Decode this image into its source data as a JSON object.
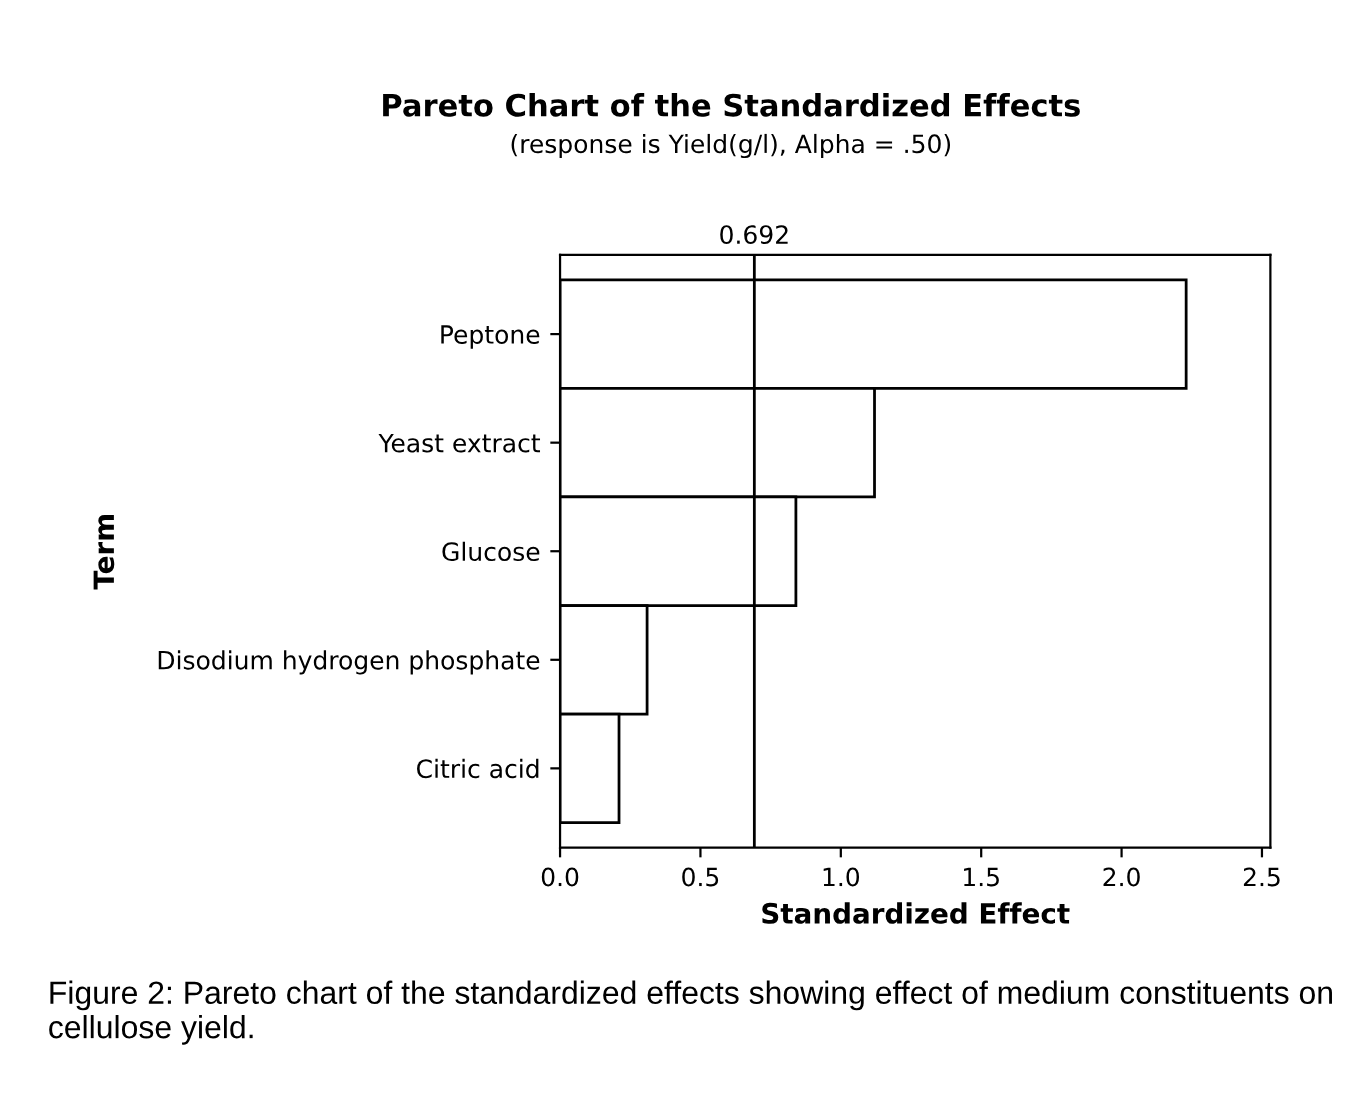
{
  "chart_data": {
    "type": "bar",
    "orientation": "horizontal",
    "title": "Pareto Chart of the Standardized Effects",
    "subtitle": "(response is Yield(g/l), Alpha = .50)",
    "xlabel": "Standardized Effect",
    "ylabel": "Term",
    "categories": [
      "Peptone",
      "Yeast extract",
      "Glucose",
      "Disodium hydrogen phosphate",
      "Citric acid"
    ],
    "values": [
      2.23,
      1.12,
      0.84,
      0.31,
      0.21
    ],
    "color": "#ffffff",
    "xlim": [
      0,
      2.53
    ],
    "xticks": [
      {
        "value": 0,
        "label": "0.0"
      },
      {
        "value": 0.5,
        "label": "0.5"
      },
      {
        "value": 1,
        "label": "1.0"
      },
      {
        "value": 1.5,
        "label": "1.5"
      },
      {
        "value": 2,
        "label": "2.0"
      },
      {
        "value": 2.5,
        "label": "2.5"
      }
    ],
    "ref_lines": [
      {
        "axis": "x",
        "value": 0.692,
        "label": "0.692",
        "color": "#000000"
      }
    ],
    "grid": false,
    "legend": false,
    "annotations": [
      "Figure 2: Pareto chart of the standardized effects showing effect of medium constituents on cellulose yield."
    ]
  }
}
